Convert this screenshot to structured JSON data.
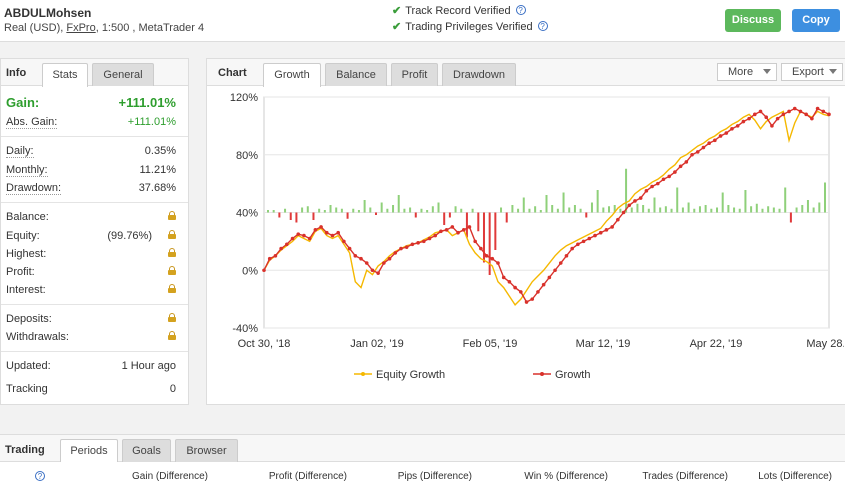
{
  "account": {
    "name": "ABDULMohsen",
    "type": "Real (USD),",
    "broker": "FxPro",
    "details": ", 1:500 , MetaTrader 4"
  },
  "verification": {
    "track": "Track Record Verified",
    "privileges": "Trading Privileges Verified"
  },
  "buttons": {
    "discuss": "Discuss",
    "copy": "Copy"
  },
  "info": {
    "title": "Info",
    "tabs": [
      "Stats",
      "General"
    ],
    "gain": {
      "label": "Gain:",
      "value": "+111.01%"
    },
    "abs_gain": {
      "label": "Abs. Gain:",
      "value": "+111.01%"
    },
    "daily": {
      "label": "Daily:",
      "value": "0.35%"
    },
    "monthly": {
      "label": "Monthly:",
      "value": "11.21%"
    },
    "drawdown": {
      "label": "Drawdown:",
      "value": "37.68%"
    },
    "balance": {
      "label": "Balance:"
    },
    "equity": {
      "label": "Equity:",
      "pct": "(99.76%)"
    },
    "highest": {
      "label": "Highest:"
    },
    "profit": {
      "label": "Profit:"
    },
    "interest": {
      "label": "Interest:"
    },
    "deposits": {
      "label": "Deposits:"
    },
    "withdrawals": {
      "label": "Withdrawals:"
    },
    "updated": {
      "label": "Updated:",
      "value": "1 Hour ago"
    },
    "tracking": {
      "label": "Tracking",
      "value": "0"
    }
  },
  "chart_panel": {
    "title": "Chart",
    "tabs": [
      "Growth",
      "Balance",
      "Profit",
      "Drawdown"
    ],
    "more": "More",
    "export": "Export"
  },
  "chart_data": {
    "type": "line",
    "y_ticks": [
      "120%",
      "80%",
      "40%",
      "0%",
      "-40%"
    ],
    "ylim": [
      -40,
      120
    ],
    "x_ticks": [
      "Oct 30, '18",
      "Jan 02, '19",
      "Feb 05, '19",
      "Mar 12, '19",
      "Apr 22, '19",
      "May 28..."
    ],
    "legend": [
      "Equity Growth",
      "Growth"
    ],
    "colors": {
      "equity": "#f5b800",
      "growth": "#d9312b",
      "bar_pos": "#8fd07a",
      "bar_neg": "#e0393a"
    },
    "series": [
      {
        "name": "Growth",
        "values": [
          0,
          8,
          10,
          15,
          18,
          22,
          25,
          24,
          22,
          28,
          30,
          26,
          24,
          26,
          20,
          15,
          10,
          8,
          5,
          0,
          -2,
          5,
          8,
          12,
          15,
          16,
          18,
          19,
          20,
          22,
          24,
          27,
          28,
          30,
          26,
          28,
          30,
          20,
          15,
          10,
          8,
          5,
          -5,
          -8,
          -12,
          -15,
          -22,
          -20,
          -15,
          -10,
          -5,
          0,
          5,
          10,
          15,
          18,
          20,
          22,
          24,
          26,
          28,
          30,
          35,
          40,
          45,
          48,
          50,
          55,
          58,
          60,
          63,
          65,
          68,
          72,
          75,
          80,
          82,
          85,
          88,
          90,
          93,
          95,
          98,
          100,
          103,
          105,
          108,
          110,
          106,
          100,
          105,
          108,
          110,
          112,
          110,
          108,
          105,
          112,
          110,
          108
        ]
      },
      {
        "name": "Equity Growth",
        "values": [
          0,
          7,
          10,
          14,
          17,
          20,
          24,
          22,
          20,
          27,
          29,
          24,
          22,
          24,
          18,
          12,
          -8,
          -12,
          0,
          -3,
          3,
          6,
          10,
          13,
          15,
          17,
          18,
          19,
          21,
          23,
          26,
          27,
          28,
          24,
          26,
          28,
          18,
          12,
          8,
          6,
          3,
          -8,
          -12,
          -18,
          -24,
          -20,
          -14,
          -8,
          -4,
          0,
          5,
          10,
          14,
          17,
          19,
          21,
          23,
          25,
          27,
          29,
          34,
          38,
          43,
          46,
          48,
          53,
          56,
          58,
          61,
          63,
          66,
          70,
          73,
          78,
          80,
          83,
          86,
          88,
          91,
          93,
          96,
          98,
          101,
          103,
          106,
          108,
          104,
          98,
          103,
          106,
          108,
          110,
          90,
          102,
          110,
          108,
          106,
          110,
          108,
          107
        ]
      }
    ],
    "bars": [
      2,
      2,
      -4,
      3,
      -6,
      -8,
      4,
      5,
      -6,
      3,
      2,
      6,
      4,
      3,
      -5,
      3,
      2,
      10,
      4,
      -2,
      8,
      3,
      6,
      14,
      3,
      4,
      -4,
      3,
      2,
      5,
      8,
      -10,
      -4,
      5,
      3,
      -20,
      3,
      -15,
      -40,
      -50,
      -30,
      4,
      -8,
      6,
      3,
      12,
      3,
      5,
      2,
      14,
      6,
      3,
      16,
      4,
      6,
      3,
      -4,
      8,
      18,
      4,
      5,
      6,
      3,
      35,
      4,
      7,
      6,
      3,
      12,
      4,
      5,
      3,
      20,
      4,
      8,
      3,
      5,
      6,
      3,
      4,
      16,
      6,
      4,
      3,
      18,
      5,
      7,
      3,
      5,
      4,
      3,
      20,
      -8,
      4,
      6,
      10,
      4,
      8,
      24
    ]
  },
  "trading": {
    "title": "Trading",
    "tabs": [
      "Periods",
      "Goals",
      "Browser"
    ],
    "columns": [
      "Gain (Difference)",
      "Profit (Difference)",
      "Pips (Difference)",
      "Win % (Difference)",
      "Trades (Difference)",
      "Lots (Difference)"
    ]
  }
}
